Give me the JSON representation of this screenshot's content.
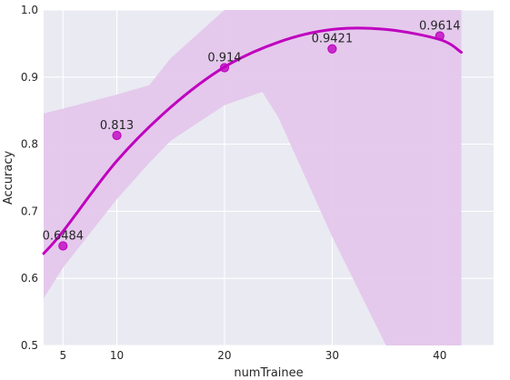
{
  "chart_data": {
    "type": "scatter",
    "title": "",
    "xlabel": "numTrainee",
    "ylabel": "Accuracy",
    "xlim": [
      3.2,
      45
    ],
    "ylim": [
      0.5,
      1.0
    ],
    "xticks": [
      5,
      10,
      20,
      30,
      40
    ],
    "yticks": [
      0.5,
      0.6,
      0.7,
      0.8,
      0.9,
      1.0
    ],
    "xtick_labels": [
      "5",
      "10",
      "20",
      "30",
      "40"
    ],
    "ytick_labels": [
      "0.5",
      "0.6",
      "0.7",
      "0.8",
      "0.9",
      "1.0"
    ],
    "grid": true,
    "legend": "none",
    "points": {
      "x": [
        5,
        10,
        20,
        30,
        40
      ],
      "y": [
        0.6484,
        0.813,
        0.914,
        0.9421,
        0.9614
      ],
      "labels": [
        "0.6484",
        "0.813",
        "0.914",
        "0.9421",
        "0.9614"
      ]
    },
    "fit_line": {
      "x": [
        3.2,
        5,
        10,
        15,
        20,
        25,
        30,
        35,
        40,
        42
      ],
      "y": [
        0.637,
        0.67,
        0.775,
        0.855,
        0.915,
        0.952,
        0.971,
        0.971,
        0.956,
        0.937
      ]
    },
    "confidence_band": {
      "x": [
        3.2,
        5,
        10,
        13,
        15,
        20,
        23.5,
        25,
        30,
        35,
        40,
        42
      ],
      "upper": [
        0.846,
        0.853,
        0.874,
        0.888,
        0.928,
        1.0,
        1.0,
        1.0,
        1.0,
        1.0,
        1.0,
        1.0
      ],
      "lower": [
        0.57,
        0.616,
        0.718,
        0.772,
        0.805,
        0.858,
        0.878,
        0.84,
        0.662,
        0.45,
        0.22,
        0.1
      ]
    },
    "colors": {
      "background": "#eaeaf2",
      "grid": "#ffffff",
      "points": "#bf00bf",
      "line": "#bf00bf",
      "band": "#e4c7eb",
      "text": "#262626"
    }
  }
}
